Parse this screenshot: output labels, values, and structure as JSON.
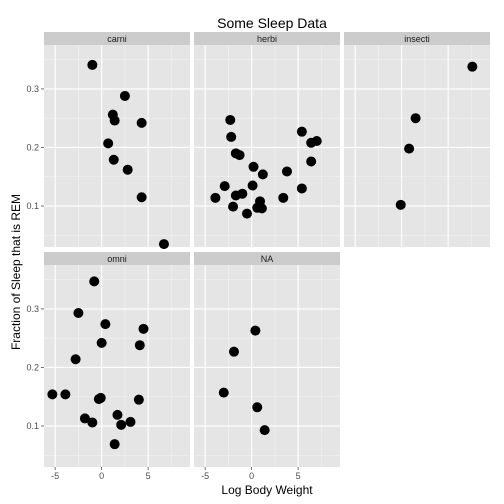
{
  "chart_data": {
    "type": "scatter",
    "title": "Some Sleep Data",
    "xlabel": "Log Body Weight",
    "ylabel": "Fraction of Sleep that is REM",
    "xlim": [
      -6.2,
      9.5
    ],
    "ylim": [
      0.03,
      0.375
    ],
    "x_ticks": [
      -5,
      0,
      5
    ],
    "x_tick_labels": [
      "-5",
      "0",
      "5"
    ],
    "y_ticks": [
      0.1,
      0.2,
      0.3
    ],
    "y_tick_labels": [
      "0.1",
      "0.2",
      "0.3"
    ],
    "facet_layout": "wrap, 3 columns",
    "panel_background": "#e5e5e5",
    "strip_background": "#cccccc",
    "grid_color": "#ffffff",
    "point_color": "#000000",
    "facets": [
      {
        "label": "carni",
        "points": [
          {
            "x": -1.0,
            "y": 0.341
          },
          {
            "x": 2.5,
            "y": 0.288
          },
          {
            "x": 1.2,
            "y": 0.256
          },
          {
            "x": 1.4,
            "y": 0.246
          },
          {
            "x": 4.3,
            "y": 0.242
          },
          {
            "x": 0.7,
            "y": 0.207
          },
          {
            "x": 1.3,
            "y": 0.179
          },
          {
            "x": 2.8,
            "y": 0.162
          },
          {
            "x": 4.3,
            "y": 0.115
          },
          {
            "x": 6.7,
            "y": 0.035
          }
        ]
      },
      {
        "label": "herbi",
        "points": [
          {
            "x": -2.3,
            "y": 0.247
          },
          {
            "x": -2.2,
            "y": 0.218
          },
          {
            "x": 5.4,
            "y": 0.227
          },
          {
            "x": 6.4,
            "y": 0.208
          },
          {
            "x": 7.0,
            "y": 0.211
          },
          {
            "x": -1.7,
            "y": 0.19
          },
          {
            "x": -1.3,
            "y": 0.187
          },
          {
            "x": 6.4,
            "y": 0.176
          },
          {
            "x": 0.2,
            "y": 0.167
          },
          {
            "x": 1.2,
            "y": 0.154
          },
          {
            "x": 3.8,
            "y": 0.159
          },
          {
            "x": -2.9,
            "y": 0.134
          },
          {
            "x": -1.7,
            "y": 0.118
          },
          {
            "x": -1.0,
            "y": 0.121
          },
          {
            "x": 0.1,
            "y": 0.135
          },
          {
            "x": 5.4,
            "y": 0.13
          },
          {
            "x": -3.9,
            "y": 0.114
          },
          {
            "x": 3.4,
            "y": 0.114
          },
          {
            "x": 0.9,
            "y": 0.108
          },
          {
            "x": -2.0,
            "y": 0.099
          },
          {
            "x": 0.6,
            "y": 0.097
          },
          {
            "x": 1.1,
            "y": 0.096
          },
          {
            "x": -0.5,
            "y": 0.087
          }
        ]
      },
      {
        "label": "insecti",
        "points": [
          {
            "x": 7.6,
            "y": 0.338
          },
          {
            "x": 1.5,
            "y": 0.25
          },
          {
            "x": 0.8,
            "y": 0.198
          },
          {
            "x": -0.1,
            "y": 0.102
          }
        ]
      },
      {
        "label": "omni",
        "points": [
          {
            "x": -0.8,
            "y": 0.347
          },
          {
            "x": -2.5,
            "y": 0.293
          },
          {
            "x": 0.4,
            "y": 0.274
          },
          {
            "x": 4.5,
            "y": 0.266
          },
          {
            "x": 0.0,
            "y": 0.242
          },
          {
            "x": 4.1,
            "y": 0.238
          },
          {
            "x": -2.8,
            "y": 0.214
          },
          {
            "x": -5.3,
            "y": 0.154
          },
          {
            "x": -3.9,
            "y": 0.154
          },
          {
            "x": -0.3,
            "y": 0.146
          },
          {
            "x": -0.1,
            "y": 0.148
          },
          {
            "x": 4.0,
            "y": 0.145
          },
          {
            "x": 1.7,
            "y": 0.119
          },
          {
            "x": -1.8,
            "y": 0.113
          },
          {
            "x": -1.0,
            "y": 0.106
          },
          {
            "x": 3.1,
            "y": 0.107
          },
          {
            "x": 2.1,
            "y": 0.102
          },
          {
            "x": 1.4,
            "y": 0.069
          }
        ]
      },
      {
        "label": "NA",
        "points": [
          {
            "x": 0.4,
            "y": 0.263
          },
          {
            "x": -1.9,
            "y": 0.227
          },
          {
            "x": -3.0,
            "y": 0.157
          },
          {
            "x": 0.6,
            "y": 0.132
          },
          {
            "x": 1.4,
            "y": 0.093
          }
        ]
      }
    ]
  }
}
